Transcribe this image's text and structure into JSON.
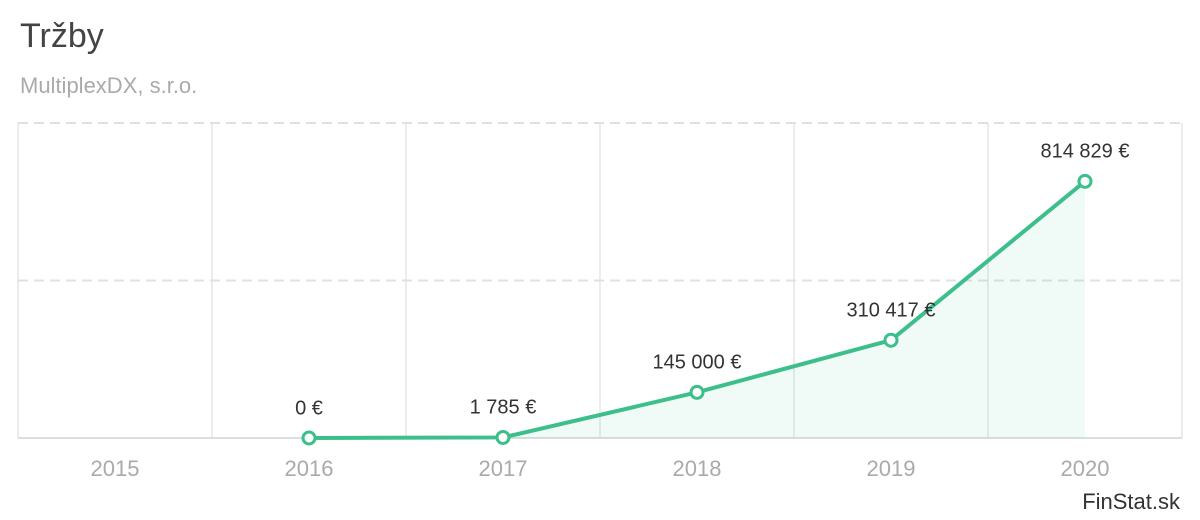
{
  "chart_data": {
    "type": "line",
    "title": "Tržby",
    "subtitle": "MultiplexDX, s.r.o.",
    "credit": "FinStat.sk",
    "categories": [
      "2015",
      "2016",
      "2017",
      "2018",
      "2019",
      "2020"
    ],
    "values": [
      null,
      0,
      1785,
      145000,
      310417,
      814829
    ],
    "value_labels": [
      null,
      "0 €",
      "1 785 €",
      "145 000 €",
      "310 417 €",
      "814 829 €"
    ],
    "color": "#3cbf8b",
    "area": true,
    "ylim": [
      0,
      1000000
    ],
    "yticks": [
      0,
      500000,
      1000000
    ],
    "grid": true
  }
}
